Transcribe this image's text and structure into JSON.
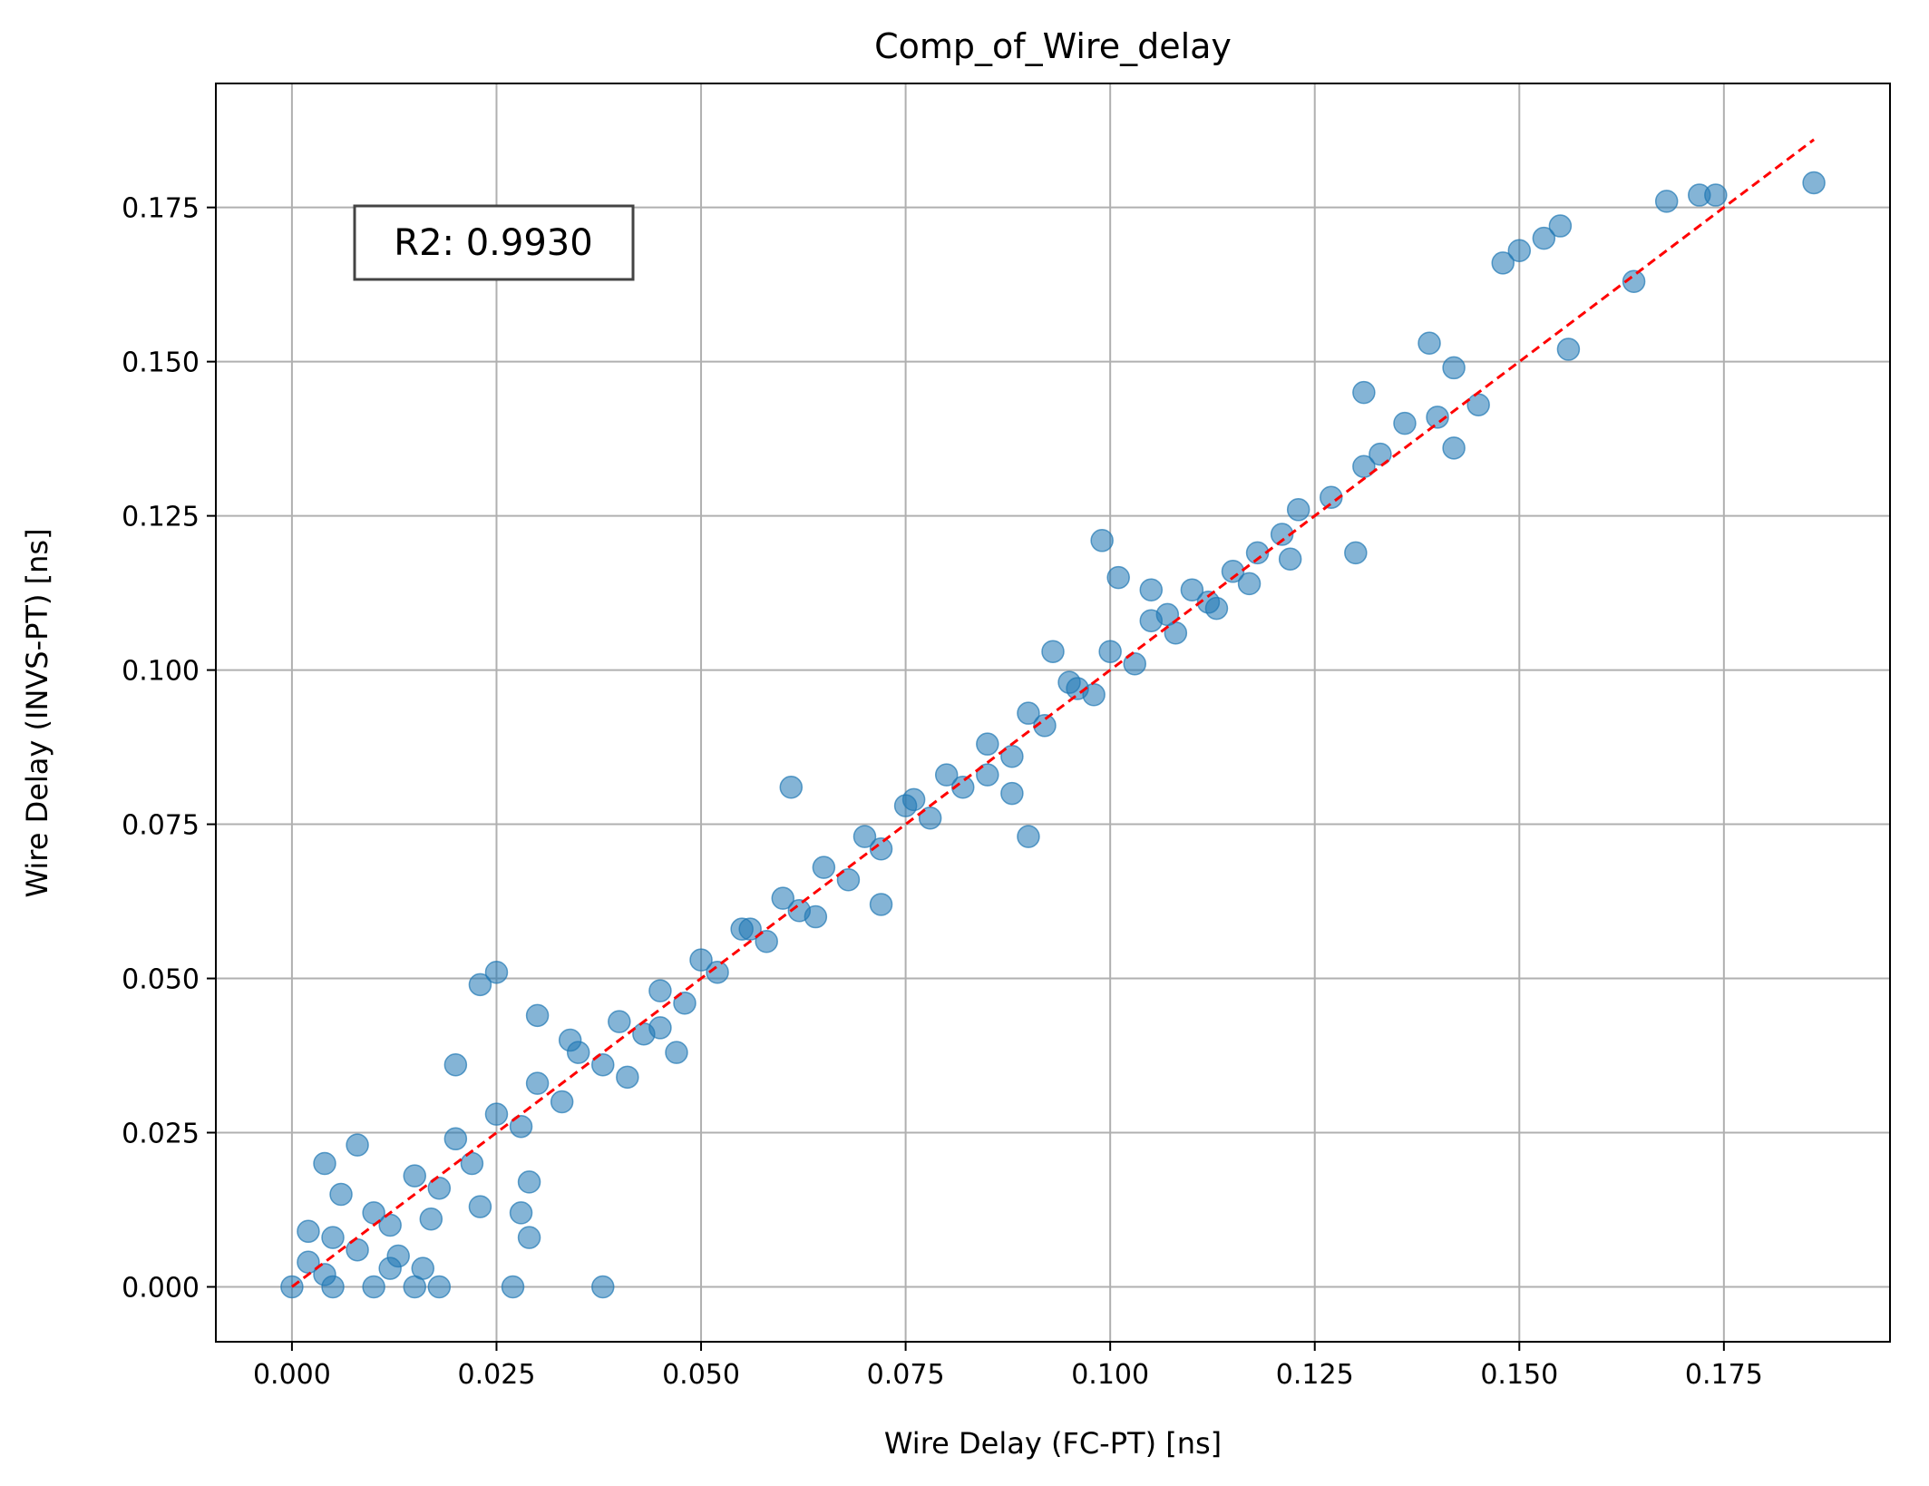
{
  "chart_data": {
    "type": "scatter",
    "title": "Comp_of_Wire_delay",
    "xlabel": "Wire Delay (FC-PT) [ns]",
    "ylabel": "Wire Delay (INVS-PT) [ns]",
    "xlim": [
      -0.0093,
      0.1953
    ],
    "ylim": [
      -0.0089,
      0.1951
    ],
    "xticks": [
      "0.000",
      "0.025",
      "0.050",
      "0.075",
      "0.100",
      "0.125",
      "0.150",
      "0.175"
    ],
    "yticks": [
      "0.000",
      "0.025",
      "0.050",
      "0.075",
      "0.100",
      "0.125",
      "0.150",
      "0.175"
    ],
    "grid": true,
    "annotation": "R2: 0.9930",
    "colors": {
      "points": "#1f77b4",
      "reference_line": "#ff0000",
      "grid": "#b0b0b0"
    },
    "reference_line": {
      "style": "dashed",
      "from": [
        0.0,
        0.0
      ],
      "to": [
        0.186,
        0.186
      ]
    },
    "series": [
      {
        "points": [
          [
            0.0,
            0.0
          ],
          [
            0.002,
            0.004
          ],
          [
            0.004,
            0.002
          ],
          [
            0.005,
            0.008
          ],
          [
            0.008,
            0.006
          ],
          [
            0.01,
            0.012
          ],
          [
            0.012,
            0.01
          ],
          [
            0.015,
            0.018
          ],
          [
            0.018,
            0.016
          ],
          [
            0.02,
            0.024
          ],
          [
            0.022,
            0.02
          ],
          [
            0.025,
            0.028
          ],
          [
            0.028,
            0.026
          ],
          [
            0.03,
            0.033
          ],
          [
            0.033,
            0.03
          ],
          [
            0.035,
            0.038
          ],
          [
            0.038,
            0.036
          ],
          [
            0.04,
            0.043
          ],
          [
            0.043,
            0.041
          ],
          [
            0.045,
            0.048
          ],
          [
            0.048,
            0.046
          ],
          [
            0.05,
            0.053
          ],
          [
            0.052,
            0.051
          ],
          [
            0.055,
            0.058
          ],
          [
            0.058,
            0.056
          ],
          [
            0.06,
            0.063
          ],
          [
            0.062,
            0.061
          ],
          [
            0.065,
            0.068
          ],
          [
            0.068,
            0.066
          ],
          [
            0.07,
            0.073
          ],
          [
            0.072,
            0.071
          ],
          [
            0.075,
            0.078
          ],
          [
            0.078,
            0.076
          ],
          [
            0.08,
            0.083
          ],
          [
            0.082,
            0.081
          ],
          [
            0.085,
            0.088
          ],
          [
            0.088,
            0.086
          ],
          [
            0.09,
            0.093
          ],
          [
            0.092,
            0.091
          ],
          [
            0.095,
            0.098
          ],
          [
            0.098,
            0.096
          ],
          [
            0.1,
            0.103
          ],
          [
            0.103,
            0.101
          ],
          [
            0.105,
            0.108
          ],
          [
            0.108,
            0.106
          ],
          [
            0.11,
            0.113
          ],
          [
            0.112,
            0.111
          ],
          [
            0.115,
            0.116
          ],
          [
            0.118,
            0.119
          ],
          [
            0.121,
            0.122
          ],
          [
            0.123,
            0.126
          ],
          [
            0.127,
            0.128
          ],
          [
            0.131,
            0.133
          ],
          [
            0.133,
            0.135
          ],
          [
            0.136,
            0.14
          ],
          [
            0.14,
            0.141
          ],
          [
            0.142,
            0.149
          ],
          [
            0.142,
            0.136
          ],
          [
            0.145,
            0.143
          ],
          [
            0.148,
            0.166
          ],
          [
            0.15,
            0.168
          ],
          [
            0.153,
            0.17
          ],
          [
            0.155,
            0.172
          ],
          [
            0.156,
            0.152
          ],
          [
            0.164,
            0.163
          ],
          [
            0.168,
            0.176
          ],
          [
            0.172,
            0.177
          ],
          [
            0.174,
            0.177
          ],
          [
            0.186,
            0.179
          ],
          [
            0.099,
            0.121
          ],
          [
            0.101,
            0.115
          ],
          [
            0.105,
            0.113
          ],
          [
            0.093,
            0.103
          ],
          [
            0.09,
            0.073
          ],
          [
            0.072,
            0.062
          ],
          [
            0.047,
            0.038
          ],
          [
            0.02,
            0.036
          ],
          [
            0.029,
            0.017
          ],
          [
            0.028,
            0.012
          ],
          [
            0.029,
            0.008
          ],
          [
            0.023,
            0.013
          ],
          [
            0.017,
            0.011
          ],
          [
            0.018,
            0.0
          ],
          [
            0.015,
            0.0
          ],
          [
            0.01,
            0.0
          ],
          [
            0.005,
            0.0
          ],
          [
            0.013,
            0.005
          ],
          [
            0.016,
            0.003
          ],
          [
            0.025,
            0.051
          ],
          [
            0.023,
            0.049
          ],
          [
            0.038,
            0.0
          ],
          [
            0.027,
            0.0
          ],
          [
            0.03,
            0.044
          ],
          [
            0.041,
            0.034
          ],
          [
            0.061,
            0.081
          ],
          [
            0.088,
            0.08
          ],
          [
            0.13,
            0.119
          ],
          [
            0.131,
            0.145
          ],
          [
            0.139,
            0.153
          ],
          [
            0.122,
            0.118
          ],
          [
            0.006,
            0.015
          ],
          [
            0.004,
            0.02
          ],
          [
            0.008,
            0.023
          ],
          [
            0.012,
            0.003
          ],
          [
            0.002,
            0.009
          ],
          [
            0.034,
            0.04
          ],
          [
            0.045,
            0.042
          ],
          [
            0.056,
            0.058
          ],
          [
            0.064,
            0.06
          ],
          [
            0.076,
            0.079
          ],
          [
            0.085,
            0.083
          ],
          [
            0.096,
            0.097
          ],
          [
            0.107,
            0.109
          ],
          [
            0.113,
            0.11
          ],
          [
            0.117,
            0.114
          ]
        ]
      }
    ]
  }
}
